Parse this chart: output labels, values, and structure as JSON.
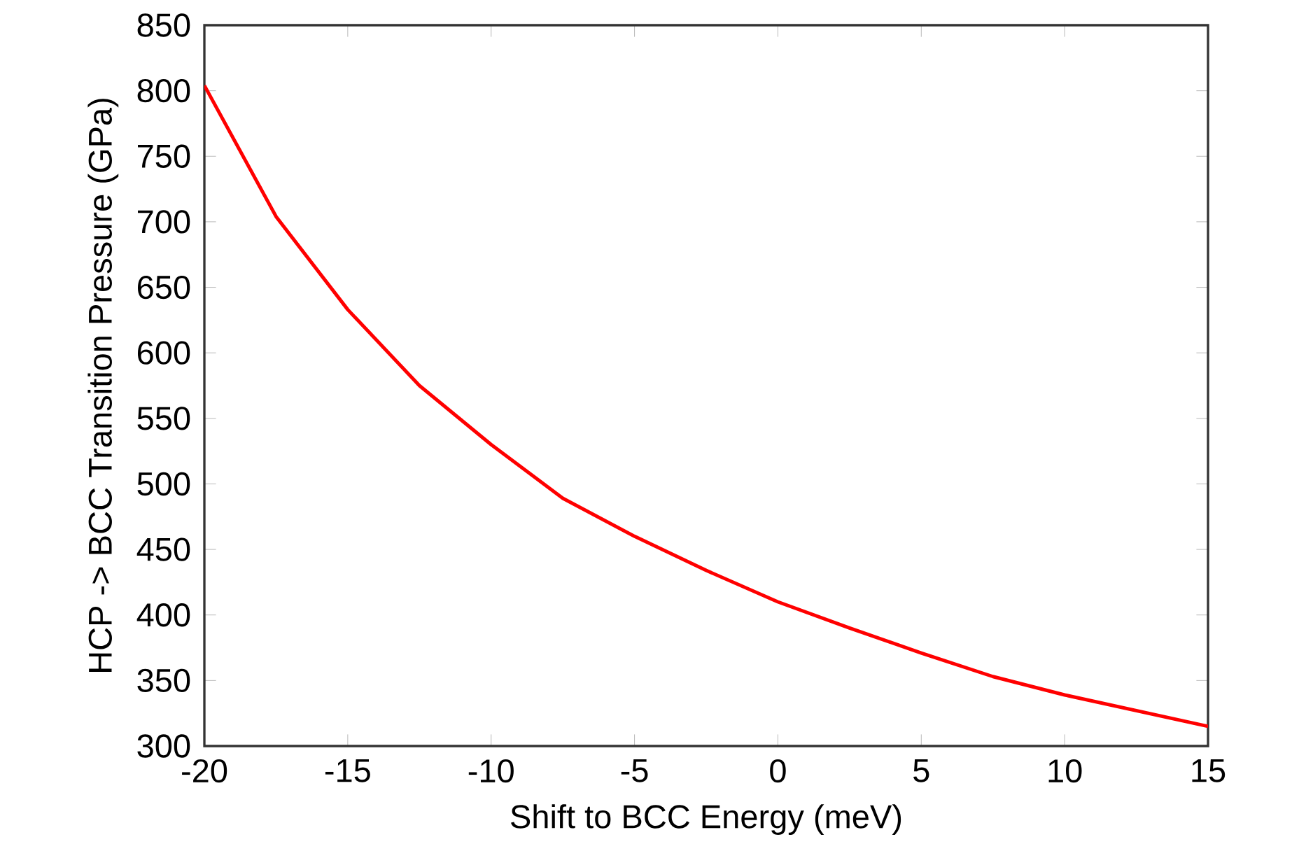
{
  "chart_data": {
    "type": "line",
    "xlabel": "Shift to BCC Energy (meV)",
    "ylabel": "HCP -> BCC Transition Pressure (GPa)",
    "x": [
      -20,
      -17.5,
      -15,
      -12.5,
      -10,
      -7.5,
      -5,
      -2.5,
      0,
      2.5,
      5,
      7.5,
      10,
      12.5,
      15
    ],
    "series": [
      {
        "color": "#ff0000",
        "values": [
          804,
          704,
          633,
          575,
          530,
          489,
          460,
          434,
          410,
          390,
          371,
          353,
          339,
          327,
          315
        ]
      }
    ],
    "xlim": [
      -20,
      15
    ],
    "xticks": [
      -20,
      -15,
      -10,
      -5,
      0,
      5,
      10,
      15
    ],
    "ylim": [
      300,
      850
    ],
    "yticks": [
      300,
      350,
      400,
      450,
      500,
      550,
      600,
      650,
      700,
      750,
      800,
      850
    ],
    "grid": false,
    "marker": "none",
    "line_style": "solid"
  }
}
